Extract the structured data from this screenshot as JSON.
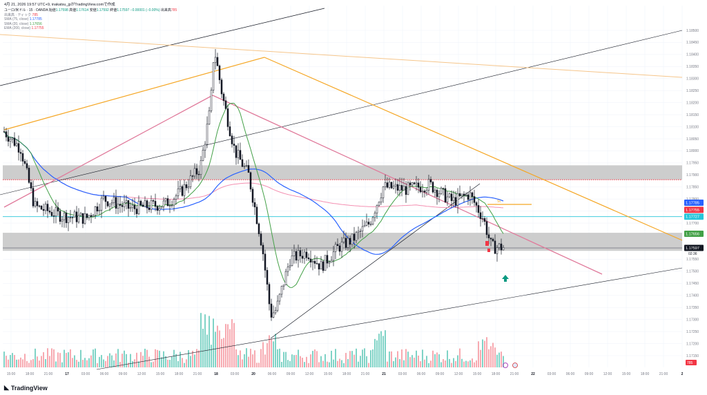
{
  "header": {
    "timestamp": "4月 21, 2026 19:57 UTC+9",
    "author": "inakatsu_jp",
    "made_with": "がTradingView.comで作成"
  },
  "instrument": {
    "line": "ユーロ/米ドル · 15 · OANDA",
    "open_label": "始値",
    "open": "1.17598",
    "high_label": "高値",
    "high": "1.17614",
    "low_label": "安値",
    "low": "1.17592",
    "close_label": "終値",
    "close": "1.17597",
    "change": "−0.00001 (−0.00%)",
    "vol_label": "出来高",
    "vol": "785"
  },
  "legend": [
    {
      "name": "出来高 · ティック",
      "value": "785",
      "color": "#f7525f"
    },
    {
      "name": "SMA (75, close)",
      "value": "1.17785",
      "color": "#2962ff"
    },
    {
      "name": "SMA (20, close)",
      "value": "1.17656",
      "color": "#43a047"
    },
    {
      "name": "EMA (200, close)",
      "value": "1.17755",
      "color": "#f48fb1"
    }
  ],
  "colors": {
    "up": "#089981",
    "down": "#f23645",
    "sma75": "#2962ff",
    "sma20": "#43a047",
    "ema200": "#f48fb1",
    "orange": "#f5a623",
    "pink": "#e07a9b",
    "cyan": "#26c6da",
    "zone": "#c8c8c8"
  },
  "chart_data": {
    "type": "candlestick",
    "yrange": [
      1.172,
      1.185
    ],
    "y_ticks": [
      "1.18500",
      "1.18450",
      "1.18400",
      "1.18350",
      "1.18300",
      "1.18250",
      "1.18200",
      "1.18150",
      "1.18100",
      "1.18050",
      "1.18000",
      "1.17950",
      "1.17900",
      "1.17850",
      "1.17800",
      "1.17750",
      "1.17700",
      "1.17650",
      "1.17600",
      "1.17550",
      "1.17500",
      "1.17450",
      "1.17400",
      "1.17350",
      "1.17300",
      "1.17250",
      "1.17200",
      "1.17150"
    ],
    "x_ticks": [
      "15:00",
      "18:00",
      "21:00",
      "17",
      "03:00",
      "06:00",
      "09:00",
      "12:00",
      "15:00",
      "18:00",
      "21:00",
      "18",
      "03:00",
      "20",
      "06:00",
      "09:00",
      "12:00",
      "15:00",
      "18:00",
      "21:00",
      "21",
      "03:00",
      "06:00",
      "09:00",
      "12:00",
      "15:00",
      "18:00",
      "21:00",
      "22",
      "03:00",
      "06:00",
      "09:00",
      "12:00",
      "15:00",
      "18:00",
      "21:00",
      "2"
    ],
    "price_labels": [
      {
        "value": "1.17785",
        "color": "#2962ff"
      },
      {
        "value": "1.17755",
        "color": "#f23645"
      },
      {
        "value": "1.17727",
        "color": "#26c6da"
      },
      {
        "value": "1.17656",
        "color": "#43a047"
      },
      {
        "value": "1.17597",
        "color": "#131722"
      }
    ],
    "countdown": "02:36",
    "volume_label": "785",
    "sl_label": "SL",
    "zones": [
      {
        "name": "upper resistance",
        "from": 1.1788,
        "to": 1.1794
      },
      {
        "name": "lower support",
        "from": 1.17585,
        "to": 1.1766
      }
    ],
    "horizontal_lines": [
      {
        "value": 1.17727,
        "color": "#26c6da"
      },
      {
        "value": 1.1788,
        "color": "#f23645",
        "style": "dotted"
      },
      {
        "value": 1.17597,
        "color": "#787b86",
        "style": "solid"
      }
    ]
  }
}
